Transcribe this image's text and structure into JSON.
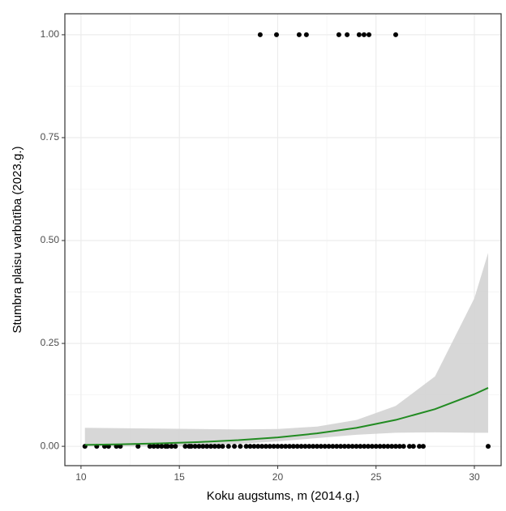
{
  "chart_data": {
    "type": "scatter",
    "x_label": "Koku augstums, m (2014.g.)",
    "y_label": "Stumbra plaisu varbūtība (2023.g.)",
    "xlim": [
      9.18,
      31.36
    ],
    "ylim": [
      -0.047,
      1.051
    ],
    "xticks": [
      10,
      15,
      20,
      25,
      30
    ],
    "yticks": [
      {
        "value": 0,
        "label": "0.00"
      },
      {
        "value": 0.25,
        "label": "0.25"
      },
      {
        "value": 0.5,
        "label": "0.50"
      },
      {
        "value": 0.75,
        "label": "0.75"
      },
      {
        "value": 1,
        "label": "1.00"
      }
    ],
    "xminor": [
      12.5,
      17.5,
      22.5,
      27.5
    ],
    "yminor": [
      0.125,
      0.375,
      0.625,
      0.875
    ],
    "grid": true,
    "points": {
      "color": "#000000",
      "x": [
        19.11,
        19.94,
        21.09,
        21.46,
        23.11,
        23.53,
        24.14,
        24.39,
        24.64,
        26.0,
        10.2,
        10.8,
        11.2,
        11.4,
        11.8,
        12.0,
        12.9,
        13.5,
        13.7,
        13.9,
        14.1,
        14.3,
        14.4,
        14.6,
        14.8,
        15.3,
        15.5,
        15.6,
        15.8,
        16.0,
        16.2,
        16.4,
        16.6,
        16.8,
        17.0,
        17.2,
        17.5,
        17.8,
        18.1,
        18.4,
        18.6,
        18.8,
        19.0,
        19.2,
        19.4,
        19.6,
        19.8,
        20.0,
        20.2,
        20.4,
        20.6,
        20.8,
        21.0,
        21.2,
        21.4,
        21.6,
        21.8,
        22.0,
        22.2,
        22.4,
        22.6,
        22.8,
        23.0,
        23.2,
        23.4,
        23.6,
        23.8,
        24.0,
        24.2,
        24.4,
        24.6,
        24.8,
        25.0,
        25.2,
        25.4,
        25.6,
        25.8,
        26.0,
        26.2,
        26.4,
        26.7,
        26.9,
        27.2,
        27.4,
        30.7
      ],
      "y": [
        1,
        1,
        1,
        1,
        1,
        1,
        1,
        1,
        1,
        1,
        0,
        0,
        0,
        0,
        0,
        0,
        0,
        0,
        0,
        0,
        0,
        0,
        0,
        0,
        0,
        0,
        0,
        0,
        0,
        0,
        0,
        0,
        0,
        0,
        0,
        0,
        0,
        0,
        0,
        0,
        0,
        0,
        0,
        0,
        0,
        0,
        0,
        0,
        0,
        0,
        0,
        0,
        0,
        0,
        0,
        0,
        0,
        0,
        0,
        0,
        0,
        0,
        0,
        0,
        0,
        0,
        0,
        0,
        0,
        0,
        0,
        0,
        0,
        0,
        0,
        0,
        0,
        0,
        0,
        0,
        0,
        0,
        0,
        0,
        0
      ]
    },
    "fit": {
      "color": "#228b22",
      "band_color": "#d3d3d3",
      "x": [
        10.2,
        12,
        14,
        16,
        18,
        20,
        22,
        24,
        26,
        28,
        30,
        30.7
      ],
      "values": [
        0.0035,
        0.0049,
        0.0071,
        0.0103,
        0.0149,
        0.0217,
        0.0314,
        0.0448,
        0.0641,
        0.0903,
        0.1267,
        0.142
      ],
      "lower": [
        0.0,
        0.0,
        0.0,
        0.001,
        0.006,
        0.012,
        0.02,
        0.028,
        0.033,
        0.034,
        0.033,
        0.033
      ],
      "upper": [
        0.045,
        0.044,
        0.043,
        0.042,
        0.041,
        0.042,
        0.048,
        0.064,
        0.098,
        0.17,
        0.36,
        0.47
      ]
    }
  }
}
